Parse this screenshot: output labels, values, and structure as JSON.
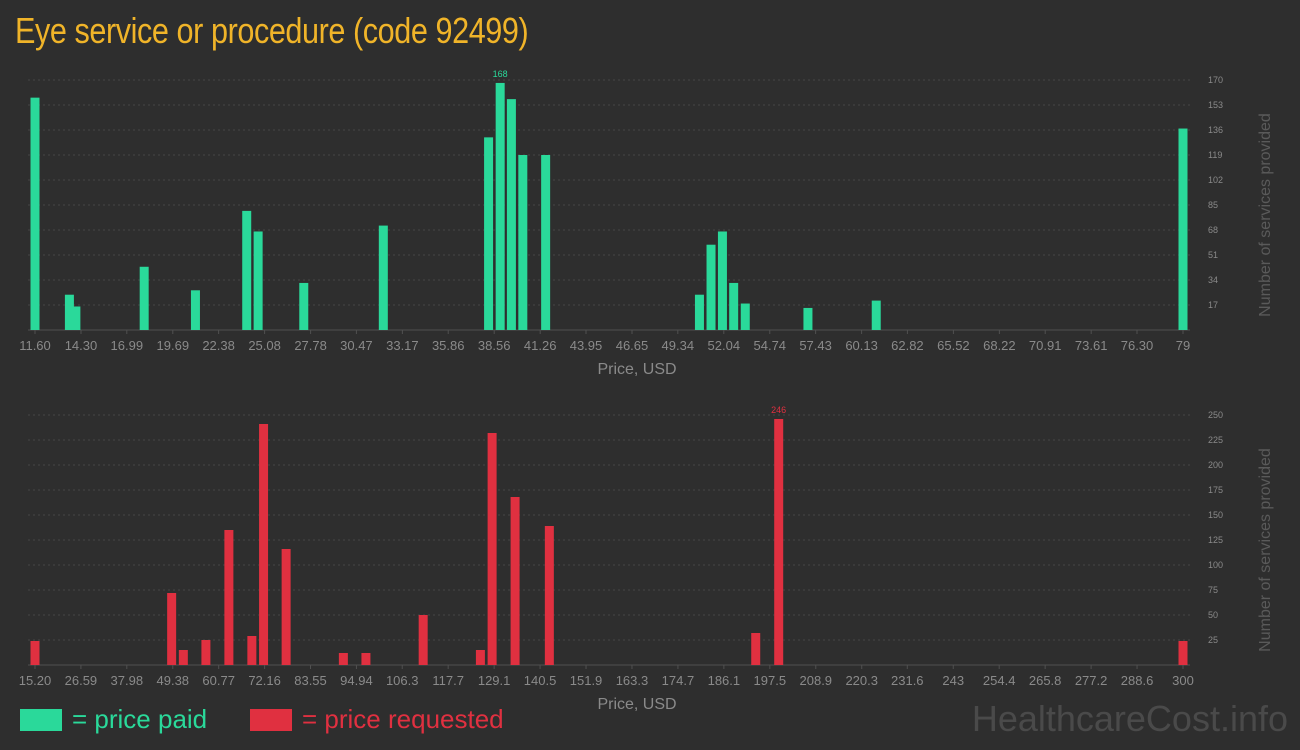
{
  "title": "Eye service or procedure (code 92499)",
  "watermark": "HealthcareCost.info",
  "legend": {
    "paid_label": "= price paid",
    "requested_label": "= price requested"
  },
  "colors": {
    "background": "#2e2e2e",
    "title": "#f0b429",
    "paid": "#2ad99a",
    "requested": "#e03040",
    "axis_text": "#8a8a8a",
    "grid": "#454545"
  },
  "chart_data": [
    {
      "type": "bar",
      "name": "price paid",
      "color": "#2ad99a",
      "xlabel": "Price, USD",
      "ylabel": "Number of services provided",
      "xlim": [
        11.6,
        79
      ],
      "ylim": [
        0,
        170
      ],
      "yticks": [
        17,
        34,
        51,
        68,
        85,
        102,
        119,
        136,
        153,
        170
      ],
      "xticks": [
        11.6,
        14.3,
        16.99,
        19.69,
        22.38,
        25.08,
        27.78,
        30.47,
        33.17,
        35.86,
        38.56,
        41.26,
        43.95,
        46.65,
        49.34,
        52.04,
        54.74,
        57.43,
        60.13,
        62.82,
        65.52,
        68.22,
        70.91,
        73.61,
        76.3,
        79
      ],
      "xtick_labels": [
        "11.60",
        "14.30",
        "16.99",
        "19.69",
        "22.38",
        "25.08",
        "27.78",
        "30.47",
        "33.17",
        "35.86",
        "38.56",
        "41.26",
        "43.95",
        "46.65",
        "49.34",
        "52.04",
        "54.74",
        "57.43",
        "60.13",
        "62.82",
        "65.52",
        "68.22",
        "70.91",
        "73.61",
        "76.30",
        "79"
      ],
      "grid": true,
      "peak_label": "168",
      "points": [
        {
          "x": 11.6,
          "y": 158
        },
        {
          "x": 13.62,
          "y": 24
        },
        {
          "x": 14.0,
          "y": 16
        },
        {
          "x": 18.01,
          "y": 43
        },
        {
          "x": 21.02,
          "y": 27
        },
        {
          "x": 24.03,
          "y": 81
        },
        {
          "x": 24.7,
          "y": 67
        },
        {
          "x": 27.38,
          "y": 32
        },
        {
          "x": 32.05,
          "y": 71
        },
        {
          "x": 38.23,
          "y": 131
        },
        {
          "x": 38.91,
          "y": 168
        },
        {
          "x": 39.57,
          "y": 157
        },
        {
          "x": 40.24,
          "y": 119
        },
        {
          "x": 41.58,
          "y": 119
        },
        {
          "x": 50.61,
          "y": 24
        },
        {
          "x": 51.29,
          "y": 58
        },
        {
          "x": 51.96,
          "y": 67
        },
        {
          "x": 52.62,
          "y": 32
        },
        {
          "x": 53.3,
          "y": 18
        },
        {
          "x": 56.98,
          "y": 15
        },
        {
          "x": 60.99,
          "y": 20
        },
        {
          "x": 79,
          "y": 137
        }
      ]
    },
    {
      "type": "bar",
      "name": "price requested",
      "color": "#e03040",
      "xlabel": "Price, USD",
      "ylabel": "Number of services provided",
      "xlim": [
        15.2,
        300
      ],
      "ylim": [
        0,
        250
      ],
      "yticks": [
        25,
        50,
        75,
        100,
        125,
        150,
        175,
        200,
        225,
        250
      ],
      "xticks": [
        15.2,
        26.59,
        37.98,
        49.38,
        60.77,
        72.16,
        83.55,
        94.94,
        106.3,
        117.7,
        129.1,
        140.5,
        151.9,
        163.3,
        174.7,
        186.1,
        197.5,
        208.9,
        220.3,
        231.6,
        243,
        254.4,
        265.8,
        277.2,
        288.6,
        300
      ],
      "xtick_labels": [
        "15.20",
        "26.59",
        "37.98",
        "49.38",
        "60.77",
        "72.16",
        "83.55",
        "94.94",
        "106.3",
        "117.7",
        "129.1",
        "140.5",
        "151.9",
        "163.3",
        "174.7",
        "186.1",
        "197.5",
        "208.9",
        "220.3",
        "231.6",
        "243",
        "254.4",
        "265.8",
        "277.2",
        "288.6",
        "300"
      ],
      "grid": true,
      "peak_label": "246",
      "points": [
        {
          "x": 15.2,
          "y": 24
        },
        {
          "x": 49.1,
          "y": 72
        },
        {
          "x": 52.0,
          "y": 15
        },
        {
          "x": 57.6,
          "y": 25
        },
        {
          "x": 63.3,
          "y": 135
        },
        {
          "x": 69.0,
          "y": 29
        },
        {
          "x": 71.9,
          "y": 241
        },
        {
          "x": 77.5,
          "y": 116
        },
        {
          "x": 91.7,
          "y": 12
        },
        {
          "x": 97.3,
          "y": 12
        },
        {
          "x": 111.5,
          "y": 50
        },
        {
          "x": 125.7,
          "y": 15
        },
        {
          "x": 128.6,
          "y": 232
        },
        {
          "x": 134.3,
          "y": 168
        },
        {
          "x": 142.8,
          "y": 139
        },
        {
          "x": 194.0,
          "y": 32
        },
        {
          "x": 199.7,
          "y": 246
        },
        {
          "x": 300,
          "y": 24
        }
      ]
    }
  ]
}
